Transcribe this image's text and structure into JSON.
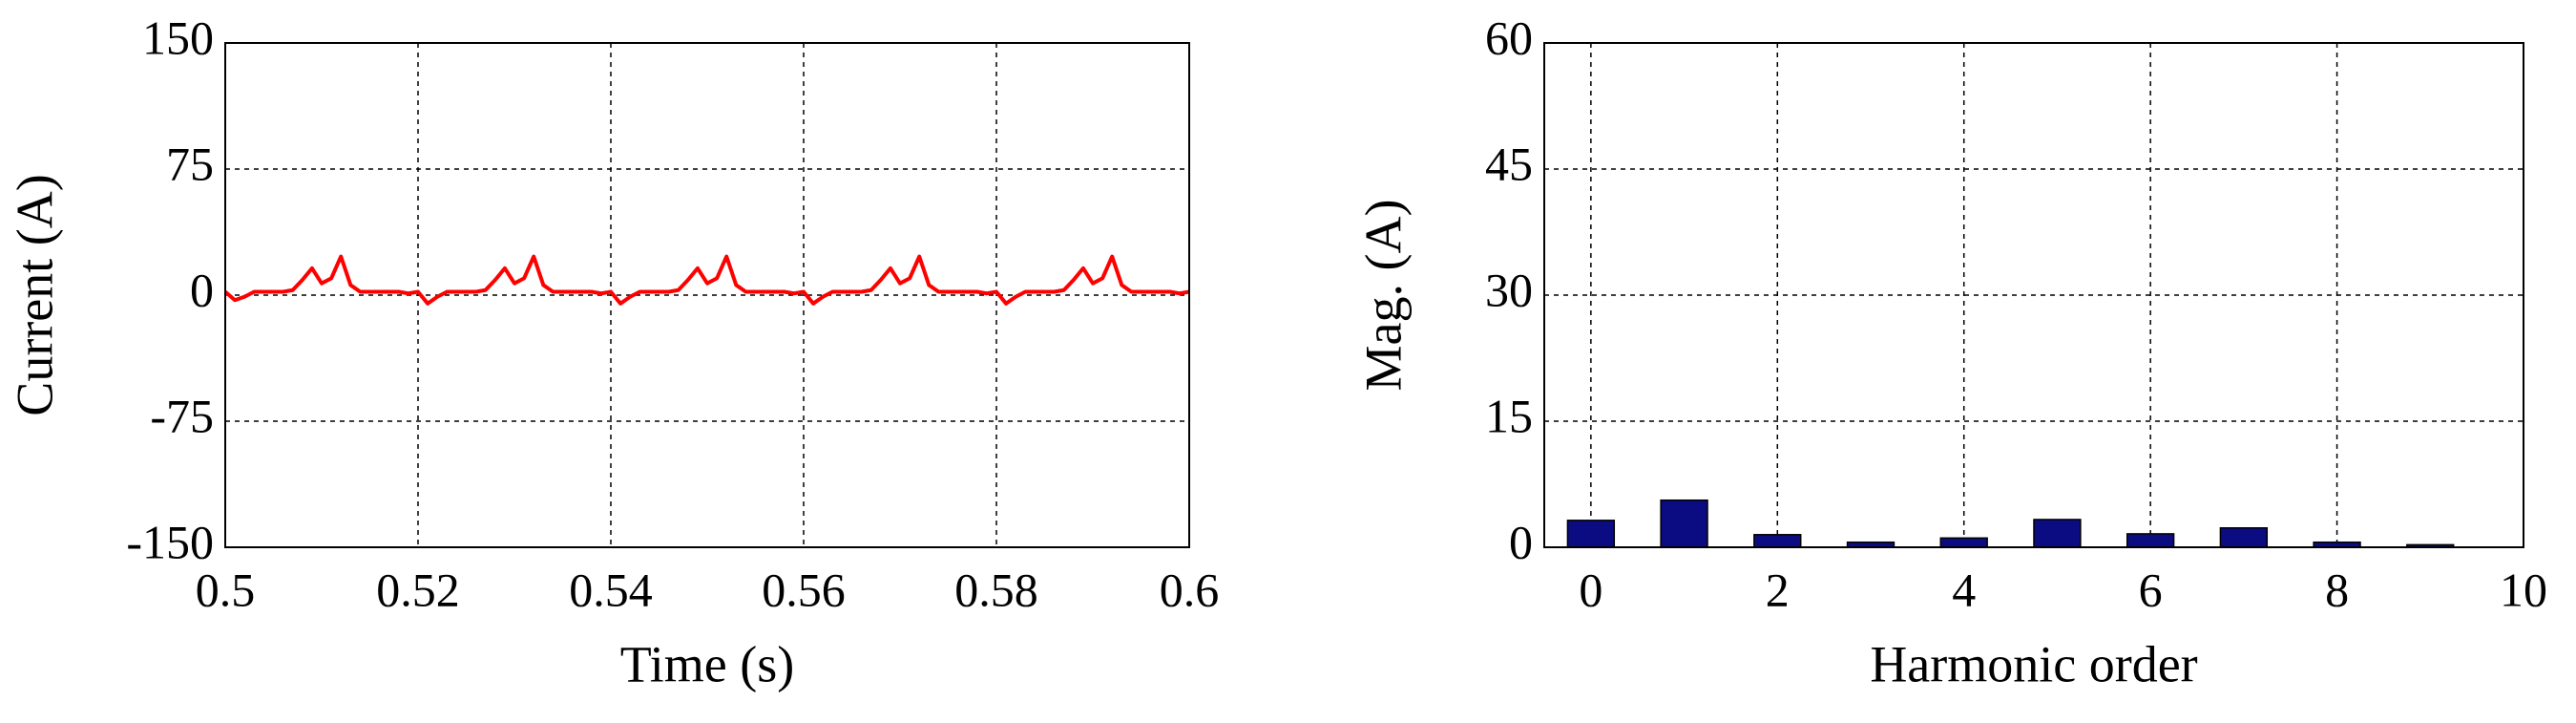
{
  "chart_data": [
    {
      "type": "line",
      "xlabel": "Time (s)",
      "ylabel": "Current (A)",
      "color": "#ff0000",
      "x": [
        0.5,
        0.501,
        0.502,
        0.503,
        0.504,
        0.505,
        0.506,
        0.507,
        0.508,
        0.509,
        0.51,
        0.511,
        0.512,
        0.513,
        0.514,
        0.515,
        0.516,
        0.517,
        0.518,
        0.519,
        0.52,
        0.521,
        0.522,
        0.523,
        0.524,
        0.525,
        0.526,
        0.527,
        0.528,
        0.529,
        0.53,
        0.531,
        0.532,
        0.533,
        0.534,
        0.535,
        0.536,
        0.537,
        0.538,
        0.539,
        0.54,
        0.541,
        0.542,
        0.543,
        0.544,
        0.545,
        0.546,
        0.547,
        0.548,
        0.549,
        0.55,
        0.551,
        0.552,
        0.553,
        0.554,
        0.555,
        0.556,
        0.557,
        0.558,
        0.559,
        0.56,
        0.561,
        0.562,
        0.563,
        0.564,
        0.565,
        0.566,
        0.567,
        0.568,
        0.569,
        0.57,
        0.571,
        0.572,
        0.573,
        0.574,
        0.575,
        0.576,
        0.577,
        0.578,
        0.579,
        0.58,
        0.581,
        0.582,
        0.583,
        0.584,
        0.585,
        0.586,
        0.587,
        0.588,
        0.589,
        0.59,
        0.591,
        0.592,
        0.593,
        0.594,
        0.595,
        0.596,
        0.597,
        0.598,
        0.599,
        0.6
      ],
      "values": [
        2,
        -3,
        -1,
        2,
        2,
        2,
        2,
        3,
        9,
        16,
        7,
        10,
        23,
        6,
        2,
        2,
        2,
        2,
        2,
        1,
        2,
        -5,
        -1,
        2,
        2,
        2,
        2,
        3,
        9,
        16,
        7,
        10,
        23,
        6,
        2,
        2,
        2,
        2,
        2,
        1,
        2,
        -5,
        -1,
        2,
        2,
        2,
        2,
        3,
        9,
        16,
        7,
        10,
        23,
        6,
        2,
        2,
        2,
        2,
        2,
        1,
        2,
        -5,
        -1,
        2,
        2,
        2,
        2,
        3,
        9,
        16,
        7,
        10,
        23,
        6,
        2,
        2,
        2,
        2,
        2,
        1,
        2,
        -5,
        -1,
        2,
        2,
        2,
        2,
        3,
        9,
        16,
        7,
        10,
        23,
        6,
        2,
        2,
        2,
        2,
        2,
        1,
        2
      ],
      "xlim": [
        0.5,
        0.6
      ],
      "xticks": [
        0.5,
        0.52,
        0.54,
        0.56,
        0.58,
        0.6
      ],
      "ylim": [
        -150,
        150
      ],
      "yticks": [
        -150,
        -75,
        0,
        75,
        150
      ],
      "grid": true
    },
    {
      "type": "bar",
      "xlabel": "Harmonic order",
      "ylabel": "Mag. (A)",
      "color": "#0c0c82",
      "x": [
        0,
        1,
        2,
        3,
        4,
        5,
        6,
        7,
        8,
        9
      ],
      "values": [
        3.2,
        5.6,
        1.5,
        0.6,
        1.1,
        3.3,
        1.6,
        2.3,
        0.6,
        0.3
      ],
      "xlim": [
        -0.5,
        10
      ],
      "xticks": [
        0,
        2,
        4,
        6,
        8,
        10
      ],
      "ylim": [
        0,
        60
      ],
      "yticks": [
        0,
        15,
        30,
        45,
        60
      ],
      "grid": true
    }
  ]
}
